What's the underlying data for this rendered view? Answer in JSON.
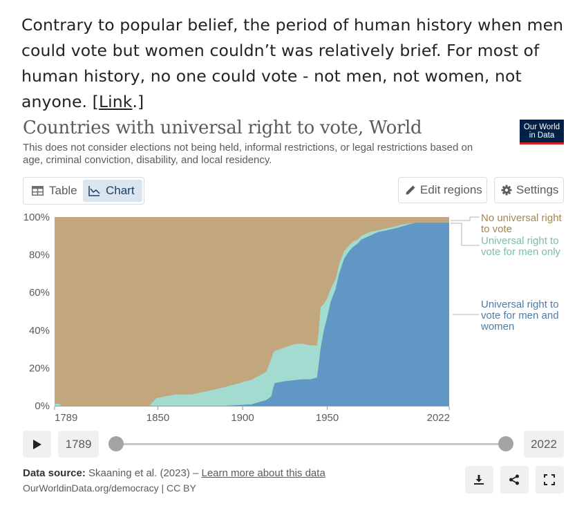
{
  "intro": {
    "text_before_link": "Contrary to popular belief, the period of human history when men could vote but women couldn’t was relatively brief. For most of human history, no one could vote - not men, not women, not anyone. [",
    "link_label": "Link",
    "text_after_link": ".]"
  },
  "header": {
    "title": "Countries with universal right to vote, World",
    "subtitle": "This does not consider elections not being held, informal restrictions, or legal restrictions based on age, criminal conviction, disability, and local residency.",
    "logo_line1": "Our World",
    "logo_line2": "in Data"
  },
  "toolbar": {
    "table_label": "Table",
    "chart_label": "Chart",
    "edit_regions_label": "Edit regions",
    "settings_label": "Settings",
    "active_tab": "Chart"
  },
  "chart_data": {
    "type": "area",
    "stacked": true,
    "title": "",
    "xlabel": "",
    "ylabel": "",
    "xlim": [
      1789,
      2022
    ],
    "ylim": [
      0,
      100
    ],
    "x_ticks": [
      "1789",
      "1850",
      "1900",
      "1950",
      "2022"
    ],
    "y_ticks": [
      "0%",
      "20%",
      "40%",
      "60%",
      "80%",
      "100%"
    ],
    "legend_position": "right",
    "series": [
      {
        "name": "Universal right to vote for men and women",
        "color": "#6197c4",
        "label_lines": [
          "Universal right to",
          "vote for men and",
          "women"
        ],
        "points": [
          [
            1789,
            0
          ],
          [
            1890,
            0
          ],
          [
            1900,
            0.5
          ],
          [
            1905,
            0.7
          ],
          [
            1910,
            2
          ],
          [
            1914,
            3
          ],
          [
            1917,
            5
          ],
          [
            1918,
            9
          ],
          [
            1919,
            12
          ],
          [
            1925,
            13
          ],
          [
            1935,
            14
          ],
          [
            1940,
            14
          ],
          [
            1944,
            15
          ],
          [
            1945,
            22
          ],
          [
            1946,
            30
          ],
          [
            1948,
            40
          ],
          [
            1950,
            47
          ],
          [
            1952,
            55
          ],
          [
            1955,
            62
          ],
          [
            1957,
            70
          ],
          [
            1960,
            78
          ],
          [
            1963,
            82
          ],
          [
            1965,
            84
          ],
          [
            1968,
            86
          ],
          [
            1970,
            88
          ],
          [
            1975,
            90
          ],
          [
            1980,
            92
          ],
          [
            1985,
            93
          ],
          [
            1990,
            94
          ],
          [
            1994,
            95
          ],
          [
            1998,
            96
          ],
          [
            2002,
            97
          ],
          [
            2022,
            97
          ]
        ]
      },
      {
        "name": "Universal right to vote for men only",
        "color": "#a2dbd0",
        "label_lines": [
          "Universal right to",
          "vote for men only"
        ],
        "points": [
          [
            1789,
            1
          ],
          [
            1792,
            1
          ],
          [
            1793,
            0
          ],
          [
            1845,
            0
          ],
          [
            1849,
            4
          ],
          [
            1860,
            6
          ],
          [
            1870,
            6
          ],
          [
            1880,
            8
          ],
          [
            1890,
            10
          ],
          [
            1900,
            12
          ],
          [
            1905,
            13
          ],
          [
            1910,
            14
          ],
          [
            1914,
            15
          ],
          [
            1917,
            20
          ],
          [
            1918,
            19
          ],
          [
            1919,
            17
          ],
          [
            1925,
            18
          ],
          [
            1930,
            19
          ],
          [
            1935,
            19
          ],
          [
            1940,
            18
          ],
          [
            1944,
            17
          ],
          [
            1945,
            18
          ],
          [
            1946,
            22
          ],
          [
            1948,
            14
          ],
          [
            1950,
            10
          ],
          [
            1952,
            7
          ],
          [
            1955,
            5
          ],
          [
            1957,
            5
          ],
          [
            1960,
            4
          ],
          [
            1963,
            3
          ],
          [
            1965,
            3
          ],
          [
            1968,
            2
          ],
          [
            1970,
            2
          ],
          [
            1975,
            2
          ],
          [
            1980,
            1
          ],
          [
            1985,
            1
          ],
          [
            1990,
            1
          ],
          [
            1994,
            1
          ],
          [
            1998,
            0.5
          ],
          [
            2002,
            0
          ],
          [
            2022,
            0
          ]
        ]
      },
      {
        "name": "No universal right to vote",
        "color": "#c2a67e",
        "label_lines": [
          "No universal right",
          "to vote"
        ],
        "fills_to": 100
      }
    ]
  },
  "timeline": {
    "start_year": "1789",
    "end_year": "2022"
  },
  "footer": {
    "source_label": "Data source:",
    "source_text": "Skaaning et al. (2023) –",
    "learn_more": "Learn more about this data",
    "url_text": "OurWorldinData.org/democracy | CC BY"
  },
  "icons": {
    "table": "table-icon",
    "chart": "line-chart-icon",
    "edit": "pencil-icon",
    "settings": "gear-icon",
    "play": "play-icon",
    "download": "download-icon",
    "share": "share-icon",
    "fullscreen": "fullscreen-icon"
  }
}
